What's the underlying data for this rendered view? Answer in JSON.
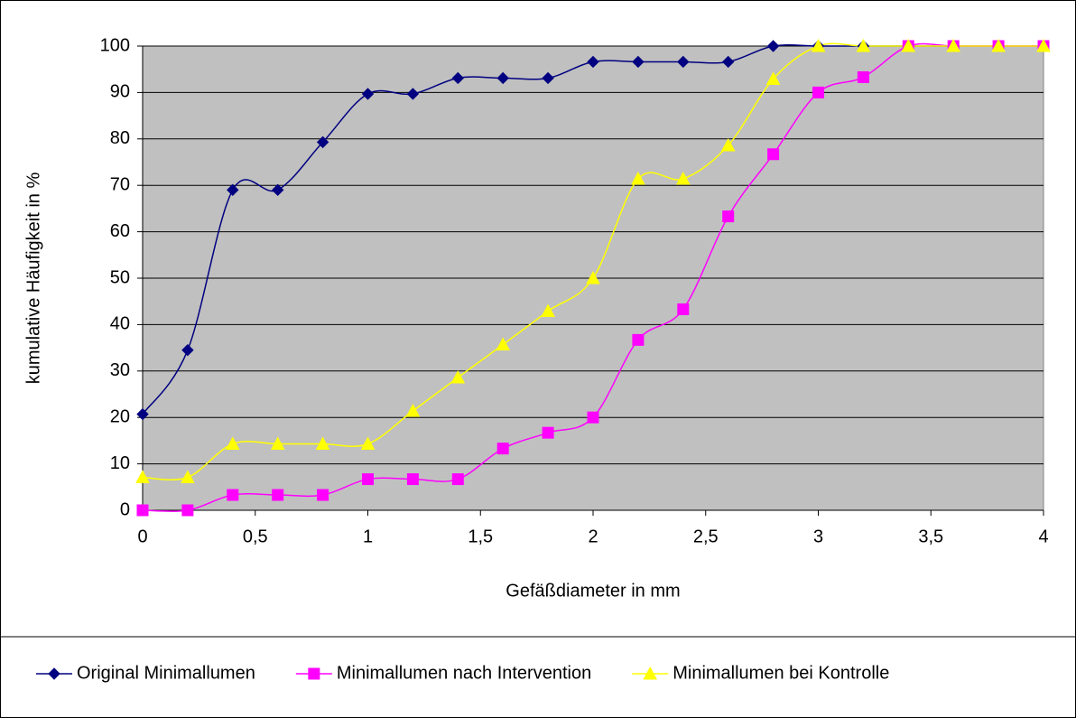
{
  "chart_data": {
    "type": "line",
    "smooth": true,
    "grid": true,
    "xlabel": "Gefäßdiameter in mm",
    "ylabel": "kumulative Häufigkeit in %",
    "x": [
      0,
      0.2,
      0.4,
      0.6,
      0.8,
      1.0,
      1.2,
      1.4,
      1.6,
      1.8,
      2.0,
      2.2,
      2.4,
      2.6,
      2.8,
      3.0,
      3.2,
      3.4,
      3.6,
      3.8,
      4.0
    ],
    "series": [
      {
        "name": "Original Minimallumen",
        "color": "#000080",
        "marker": "diamond",
        "values": [
          20.7,
          34.5,
          69,
          69,
          79.3,
          89.7,
          89.7,
          93.1,
          93.1,
          93.1,
          96.6,
          96.6,
          96.6,
          96.6,
          100,
          100,
          100,
          100,
          100,
          100,
          100
        ]
      },
      {
        "name": "Minimallumen nach Intervention",
        "color": "#FF00FF",
        "marker": "square",
        "values": [
          0,
          0,
          3.3,
          3.3,
          3.3,
          6.7,
          6.7,
          6.7,
          13.3,
          16.7,
          20,
          36.7,
          43.3,
          63.3,
          76.7,
          90,
          93.3,
          100,
          100,
          100,
          100
        ]
      },
      {
        "name": "Minimallumen bei Kontrolle",
        "color": "#FFFF00",
        "marker": "triangle",
        "values": [
          7.1,
          7.1,
          14.3,
          14.3,
          14.3,
          14.3,
          21.4,
          28.6,
          35.7,
          42.9,
          50,
          71.4,
          71.4,
          78.6,
          92.9,
          100,
          100,
          100,
          100,
          100,
          100
        ]
      }
    ],
    "xlim": [
      0,
      4
    ],
    "xticks": [
      0,
      {
        "value": 0.5,
        "label": "0,5"
      },
      1,
      {
        "value": 1.5,
        "label": "1,5"
      },
      2,
      {
        "value": 2.5,
        "label": "2,5"
      },
      3,
      {
        "value": 3.5,
        "label": "3,5"
      },
      4
    ],
    "ylim": [
      0,
      100
    ],
    "yticks": [
      0,
      10,
      20,
      30,
      40,
      50,
      60,
      70,
      80,
      90,
      100
    ],
    "plot_background": "#C0C0C0",
    "legend": "bottom"
  }
}
